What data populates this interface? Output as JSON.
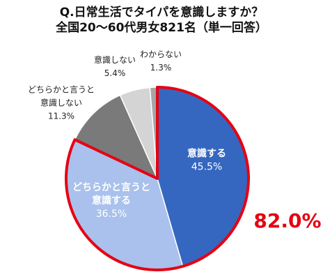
{
  "chart_data": {
    "type": "pie",
    "title": [
      "Q.日常生活でタイパを意識しますか？",
      "全国20〜60代男女821名（単一回答）"
    ],
    "slices": [
      {
        "label": [
          "意識する"
        ],
        "value": 45.5,
        "value_text": "45.5%",
        "color": "#3567c0",
        "text_color": "#ffffff"
      },
      {
        "label": [
          "どちらかと言うと",
          "意識する"
        ],
        "value": 36.5,
        "value_text": "36.5%",
        "color": "#a9c1ec",
        "text_color": "#ffffff"
      },
      {
        "label": [
          "どちらかと言うと",
          "意識しない"
        ],
        "value": 11.3,
        "value_text": "11.3%",
        "color": "#7a7a7a",
        "text_color": "#222222"
      },
      {
        "label": [
          "意識しない"
        ],
        "value": 5.4,
        "value_text": "5.4%",
        "color": "#d4d4d4",
        "text_color": "#222222"
      },
      {
        "label": [
          "わからない"
        ],
        "value": 1.3,
        "value_text": "1.3%",
        "color": "#a6a6a6",
        "text_color": "#222222"
      }
    ],
    "highlight": {
      "text": "82.0%",
      "color": "#e60012"
    },
    "start_angle": "12 o'clock",
    "direction": "clockwise"
  }
}
